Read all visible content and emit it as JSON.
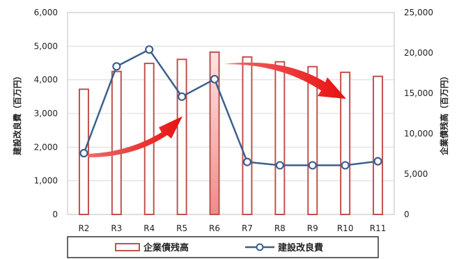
{
  "chart_data": {
    "type": "bar+line",
    "categories": [
      "R2",
      "R3",
      "R4",
      "R5",
      "R6",
      "R7",
      "R8",
      "R9",
      "R10",
      "R11"
    ],
    "series": [
      {
        "name": "企業債残高",
        "chart": "bar",
        "axis": "right",
        "values": [
          15500,
          17700,
          18700,
          19200,
          20100,
          19500,
          18900,
          18300,
          17600,
          17100
        ],
        "highlight_index": 4
      },
      {
        "name": "建設改良費",
        "chart": "line",
        "axis": "left",
        "values": [
          1820,
          4400,
          4900,
          3500,
          4020,
          1560,
          1460,
          1460,
          1460,
          1580
        ]
      }
    ],
    "left_axis": {
      "label": "建設改良費（百万円）",
      "ylim": [
        0,
        6000
      ],
      "ticks": [
        "0",
        "1,000",
        "2,000",
        "3,000",
        "4,000",
        "5,000",
        "6,000"
      ]
    },
    "right_axis": {
      "label": "企業債残高（百万円）",
      "ylim": [
        0,
        25000
      ],
      "ticks": [
        "0",
        "5,000",
        "10,000",
        "15,000",
        "20,000",
        "25,000"
      ]
    },
    "legend_position": "bottom",
    "grid": "horizontal",
    "colors": {
      "bar_stroke": "#c0504d",
      "bar_highlight_fill": "#f6b6b6",
      "line": "#3b5f8a",
      "marker_fill": "#ffffff",
      "grid": "#d9d9d9",
      "arrow": "#ee1c1c"
    }
  }
}
